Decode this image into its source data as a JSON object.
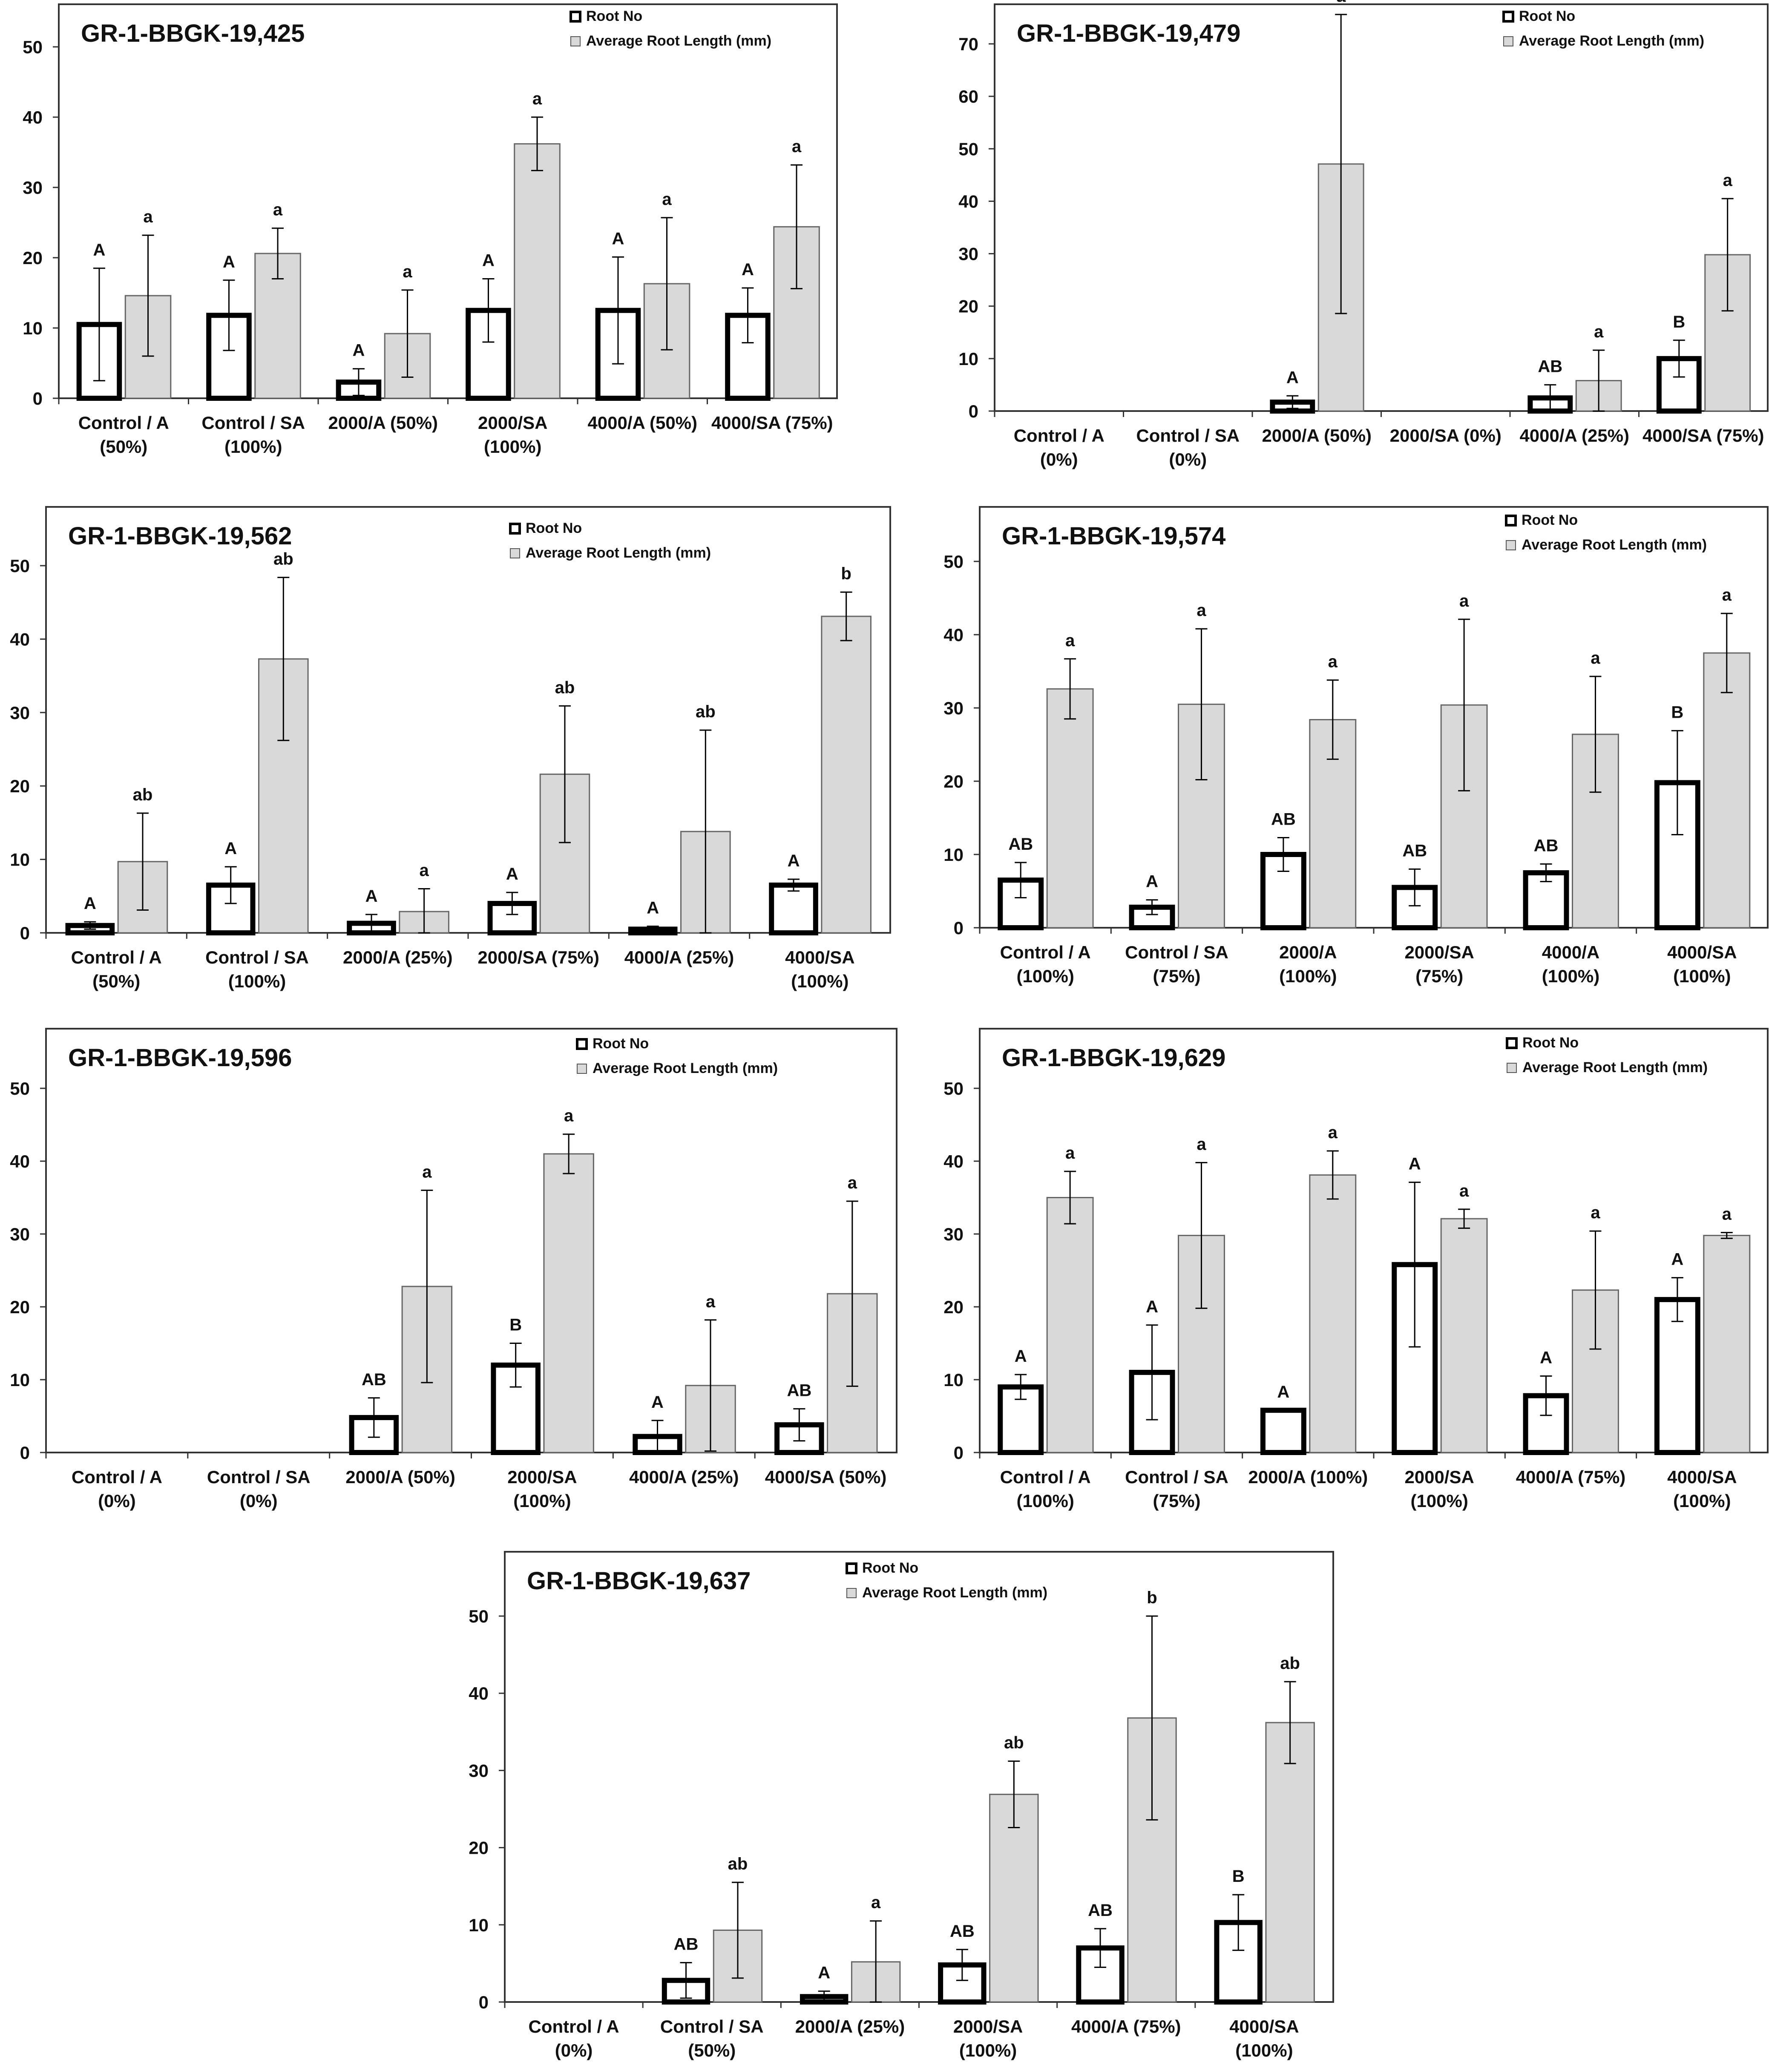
{
  "figure": {
    "legend_root_no": "Root No",
    "legend_avg_length": "Average Root Length (mm)"
  },
  "chart_data": [
    {
      "type": "bar",
      "title": "GR-1-BBGK-19,425",
      "ylim": [
        0,
        50
      ],
      "yticks": [
        0,
        10,
        20,
        30,
        40,
        50
      ],
      "categories": [
        [
          "Control / A",
          "(50%)"
        ],
        [
          "Control / SA",
          "(100%)"
        ],
        [
          "2000/A (50%)"
        ],
        [
          "2000/SA",
          "(100%)"
        ],
        [
          "4000/A (50%)"
        ],
        [
          "4000/SA (75%)"
        ]
      ],
      "series": [
        {
          "name": "Root No",
          "values": [
            10.5,
            11.8,
            2.3,
            12.5,
            12.5,
            11.8
          ],
          "err": [
            8,
            5,
            1.9,
            4.5,
            7.6,
            3.9
          ],
          "letters": [
            "A",
            "A",
            "A",
            "A",
            "A",
            "A"
          ]
        },
        {
          "name": "Average Root Length (mm)",
          "values": [
            14.6,
            20.6,
            9.2,
            36.2,
            16.3,
            24.4
          ],
          "err": [
            8.6,
            3.6,
            6.2,
            3.8,
            9.4,
            8.8
          ],
          "letters": [
            "a",
            "a",
            "a",
            "a",
            "a",
            "a"
          ]
        }
      ]
    },
    {
      "type": "bar",
      "title": "GR-1-BBGK-19,479",
      "ylim": [
        0,
        70
      ],
      "yticks": [
        0,
        10,
        20,
        30,
        40,
        50,
        60,
        70
      ],
      "categories": [
        [
          "Control / A",
          "(0%)"
        ],
        [
          "Control / SA",
          "(0%)"
        ],
        [
          "2000/A (50%)"
        ],
        [
          "2000/SA (0%)"
        ],
        [
          "4000/A (25%)"
        ],
        [
          "4000/SA (75%)"
        ]
      ],
      "series": [
        {
          "name": "Root No",
          "values": [
            0,
            0,
            1.7,
            0,
            2.5,
            10
          ],
          "err": [
            0,
            0,
            1.2,
            0,
            2.5,
            3.5
          ],
          "letters": [
            "",
            "",
            "A",
            "",
            "AB",
            "B"
          ]
        },
        {
          "name": "Average Root Length (mm)",
          "values": [
            0,
            0,
            47.1,
            0,
            5.8,
            29.8
          ],
          "err": [
            0,
            0,
            28.5,
            0,
            5.8,
            10.7
          ],
          "letters": [
            "",
            "",
            "a",
            "",
            "a",
            "a"
          ]
        }
      ]
    },
    {
      "type": "bar",
      "title": "GR-1-BBGK-19,562",
      "ylim": [
        0,
        50
      ],
      "yticks": [
        0,
        10,
        20,
        30,
        40,
        50
      ],
      "categories": [
        [
          "Control / A",
          "(50%)"
        ],
        [
          "Control / SA",
          "(100%)"
        ],
        [
          "2000/A (25%)"
        ],
        [
          "2000/SA (75%)"
        ],
        [
          "4000/A (25%)"
        ],
        [
          "4000/SA",
          "(100%)"
        ]
      ],
      "series": [
        {
          "name": "Root No",
          "values": [
            1,
            6.5,
            1.3,
            4,
            0.5,
            6.5
          ],
          "err": [
            0.5,
            2.5,
            1.2,
            1.5,
            0.4,
            0.8
          ],
          "letters": [
            "A",
            "A",
            "A",
            "A",
            "A",
            "A"
          ]
        },
        {
          "name": "Average Root Length (mm)",
          "values": [
            9.7,
            37.3,
            2.9,
            21.6,
            13.8,
            43.1
          ],
          "err": [
            6.6,
            11.1,
            3.1,
            9.3,
            13.8,
            3.3
          ],
          "letters": [
            "ab",
            "ab",
            "a",
            "ab",
            "ab",
            "b"
          ]
        }
      ]
    },
    {
      "type": "bar",
      "title": "GR-1-BBGK-19,574",
      "ylim": [
        0,
        50
      ],
      "yticks": [
        0,
        10,
        20,
        30,
        40,
        50
      ],
      "categories": [
        [
          "Control / A",
          "(100%)"
        ],
        [
          "Control / SA",
          "(75%)"
        ],
        [
          "2000/A",
          "(100%)"
        ],
        [
          "2000/SA",
          "(75%)"
        ],
        [
          "4000/A",
          "(100%)"
        ],
        [
          "4000/SA",
          "(100%)"
        ]
      ],
      "series": [
        {
          "name": "Root No",
          "values": [
            6.5,
            2.8,
            10,
            5.5,
            7.5,
            19.8
          ],
          "err": [
            2.4,
            1,
            2.3,
            2.5,
            1.2,
            7.1
          ],
          "letters": [
            "AB",
            "A",
            "AB",
            "AB",
            "AB",
            "B"
          ]
        },
        {
          "name": "Average Root Length (mm)",
          "values": [
            32.6,
            30.5,
            28.4,
            30.4,
            26.4,
            37.5
          ],
          "err": [
            4.1,
            10.3,
            5.4,
            11.7,
            7.9,
            5.4
          ],
          "letters": [
            "a",
            "a",
            "a",
            "a",
            "a",
            "a"
          ]
        }
      ]
    },
    {
      "type": "bar",
      "title": "GR-1-BBGK-19,596",
      "ylim": [
        0,
        50
      ],
      "yticks": [
        0,
        10,
        20,
        30,
        40,
        50
      ],
      "categories": [
        [
          "Control / A",
          "(0%)"
        ],
        [
          "Control / SA",
          "(0%)"
        ],
        [
          "2000/A (50%)"
        ],
        [
          "2000/SA",
          "(100%)"
        ],
        [
          "4000/A (25%)"
        ],
        [
          "4000/SA (50%)"
        ]
      ],
      "series": [
        {
          "name": "Root No",
          "values": [
            0,
            0,
            4.8,
            12,
            2.2,
            3.8
          ],
          "err": [
            0,
            0,
            2.7,
            3,
            2.2,
            2.2
          ],
          "letters": [
            "",
            "",
            "AB",
            "B",
            "A",
            "AB"
          ]
        },
        {
          "name": "Average Root Length (mm)",
          "values": [
            0,
            0,
            22.8,
            41,
            9.2,
            21.8
          ],
          "err": [
            0,
            0,
            13.2,
            2.7,
            9,
            12.7
          ],
          "letters": [
            "",
            "",
            "a",
            "a",
            "a",
            "a"
          ]
        }
      ]
    },
    {
      "type": "bar",
      "title": "GR-1-BBGK-19,629",
      "ylim": [
        0,
        50
      ],
      "yticks": [
        0,
        10,
        20,
        30,
        40,
        50
      ],
      "categories": [
        [
          "Control / A",
          "(100%)"
        ],
        [
          "Control / SA",
          "(75%)"
        ],
        [
          "2000/A (100%)"
        ],
        [
          "2000/SA",
          "(100%)"
        ],
        [
          "4000/A (75%)"
        ],
        [
          "4000/SA",
          "(100%)"
        ]
      ],
      "series": [
        {
          "name": "Root No",
          "values": [
            9,
            11,
            5.8,
            25.8,
            7.8,
            21
          ],
          "err": [
            1.7,
            6.5,
            0,
            11.3,
            2.7,
            3
          ],
          "letters": [
            "A",
            "A",
            "A",
            "A",
            "A",
            "A"
          ]
        },
        {
          "name": "Average Root Length (mm)",
          "values": [
            35,
            29.8,
            38.1,
            32.1,
            22.3,
            29.8
          ],
          "err": [
            3.6,
            10,
            3.3,
            1.3,
            8.1,
            0.4
          ],
          "letters": [
            "a",
            "a",
            "a",
            "a",
            "a",
            "a"
          ]
        }
      ]
    },
    {
      "type": "bar",
      "title": "GR-1-BBGK-19,637",
      "ylim": [
        0,
        50
      ],
      "yticks": [
        0,
        10,
        20,
        30,
        40,
        50
      ],
      "categories": [
        [
          "Control / A",
          "(0%)"
        ],
        [
          "Control / SA",
          "(50%)"
        ],
        [
          "2000/A (25%)"
        ],
        [
          "2000/SA",
          "(100%)"
        ],
        [
          "4000/A (75%)"
        ],
        [
          "4000/SA",
          "(100%)"
        ]
      ],
      "series": [
        {
          "name": "Root No",
          "values": [
            0,
            2.8,
            0.7,
            4.8,
            7,
            10.3
          ],
          "err": [
            0,
            2.3,
            0.7,
            2,
            2.5,
            3.6
          ],
          "letters": [
            "",
            "AB",
            "A",
            "AB",
            "AB",
            "B"
          ]
        },
        {
          "name": "Average Root Length (mm)",
          "values": [
            0,
            9.3,
            5.2,
            26.9,
            36.8,
            36.2
          ],
          "err": [
            0,
            6.2,
            5.3,
            4.3,
            13.2,
            5.3
          ],
          "letters": [
            "",
            "ab",
            "a",
            "ab",
            "b",
            "ab"
          ]
        }
      ]
    }
  ]
}
